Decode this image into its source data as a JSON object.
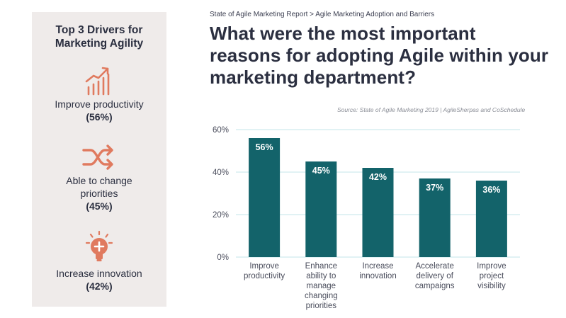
{
  "sidebar": {
    "title_line1": "Top 3 Drivers for",
    "title_line2": "Marketing Agility",
    "drivers": [
      {
        "icon": "growth-chart-icon",
        "label_line1": "Improve productivity",
        "label_line2": "",
        "pct": "(56%)"
      },
      {
        "icon": "shuffle-arrows-icon",
        "label_line1": "Able to change",
        "label_line2": "priorities",
        "pct": "(45%)"
      },
      {
        "icon": "lightbulb-plus-icon",
        "label_line1": "Increase innovation",
        "label_line2": "",
        "pct": "(42%)"
      }
    ]
  },
  "breadcrumb": "State of Agile Marketing Report  > Agile Marketing Adoption and Barriers",
  "question": "What were the most important reasons for adopting Agile within your marketing department?",
  "source": "Source: State of Agile Marketing 2019 | AgileSherpas and CoSchedule",
  "colors": {
    "accent": "#e07a5f",
    "bar": "#13636a",
    "sidebar_bg": "#efebea",
    "grid": "#d7eef0"
  },
  "chart_data": {
    "type": "bar",
    "categories": [
      [
        "Improve",
        "productivity"
      ],
      [
        "Enhance",
        "ability to",
        "manage",
        "changing",
        "priorities"
      ],
      [
        "Increase",
        "innovation"
      ],
      [
        "Accelerate",
        "delivery of",
        "campaigns"
      ],
      [
        "Improve",
        "project",
        "visibility"
      ]
    ],
    "values": [
      56,
      45,
      42,
      37,
      36
    ],
    "value_labels": [
      "56%",
      "45%",
      "42%",
      "37%",
      "36%"
    ],
    "yticks": [
      0,
      20,
      40,
      60
    ],
    "ytick_labels": [
      "0%",
      "20%",
      "40%",
      "60%"
    ],
    "ylim": [
      0,
      60
    ],
    "grid": true
  }
}
